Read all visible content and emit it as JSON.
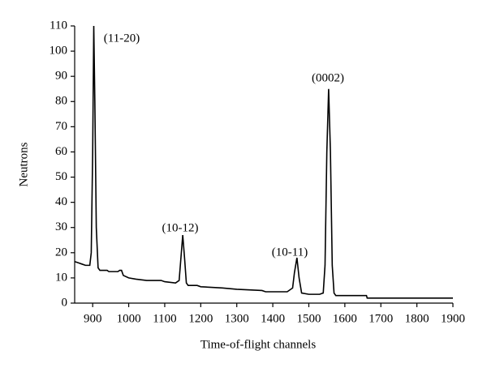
{
  "chart_data": {
    "type": "line",
    "x_label": "Time-of-flight channels",
    "y_label": "Neutrons",
    "xlim": [
      850,
      1900
    ],
    "ylim": [
      0,
      110
    ],
    "xticks": [
      900,
      1000,
      1100,
      1200,
      1300,
      1400,
      1500,
      1600,
      1700,
      1800,
      1900
    ],
    "yticks": [
      0,
      10,
      20,
      30,
      40,
      50,
      60,
      70,
      80,
      90,
      100,
      110
    ],
    "annotations": [
      "(11-20)",
      "(10-12)",
      "(10-11)",
      "(0002)"
    ],
    "series": [
      {
        "color": "#000000",
        "x": [
          850,
          860,
          870,
          880,
          892,
          896,
          900,
          903,
          906,
          910,
          915,
          920,
          940,
          945,
          970,
          975,
          980,
          985,
          1000,
          1020,
          1050,
          1090,
          1100,
          1130,
          1140,
          1145,
          1150,
          1155,
          1160,
          1165,
          1190,
          1200,
          1260,
          1300,
          1370,
          1380,
          1440,
          1455,
          1460,
          1467,
          1473,
          1480,
          1500,
          1530,
          1540,
          1545,
          1550,
          1555,
          1560,
          1565,
          1570,
          1575,
          1660,
          1662,
          1900
        ],
        "values": [
          16.5,
          16,
          15.5,
          15,
          15,
          20,
          60,
          110,
          80,
          30,
          14,
          13,
          13,
          12.5,
          12.5,
          13,
          13,
          11,
          10,
          9.5,
          9,
          9,
          8.5,
          8,
          9,
          18,
          27,
          18,
          8,
          7,
          7,
          6.5,
          6,
          5.5,
          5,
          4.5,
          4.5,
          6,
          12,
          18,
          10,
          4,
          3.5,
          3.5,
          4,
          15,
          60,
          85,
          60,
          15,
          4,
          3,
          3,
          2,
          2
        ]
      }
    ]
  }
}
